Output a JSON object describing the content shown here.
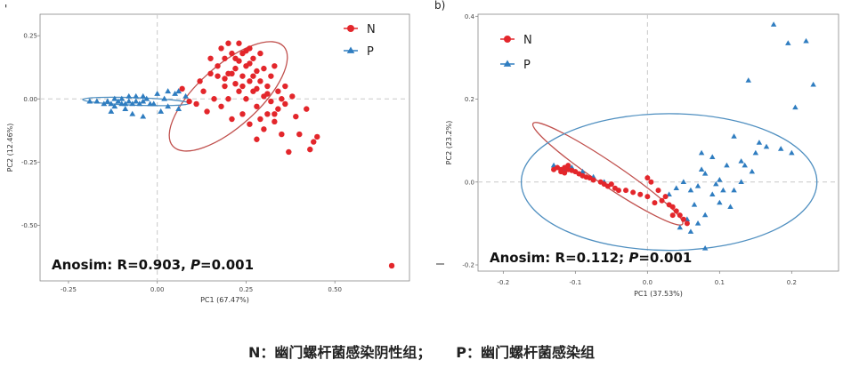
{
  "colors": {
    "N": "#e3262b",
    "P": "#2f7dc0",
    "ellipse_N": "#c0504d",
    "ellipse_P": "#4f8fc0",
    "ref_line": "#c8c8c8",
    "frame": "#888888"
  },
  "caption": {
    "n_text": "N：幽门螺杆菌感染阴性组；",
    "gap": "     ",
    "p_text": "P：幽门螺杆菌感染组"
  },
  "chart_data": [
    {
      "type": "scatter",
      "panel_letter": "'",
      "title": "",
      "xlabel": "PC1  (67.47%)",
      "ylabel": "PC2  (12.46%)",
      "xlim": [
        -0.33,
        0.71
      ],
      "ylim": [
        -0.72,
        0.335
      ],
      "xticks": [
        -0.25,
        0,
        0.25,
        0.5
      ],
      "xtick_labels": [
        "-0.25",
        "0.00",
        "0.25",
        "0.50"
      ],
      "yticks": [
        0.25,
        0,
        -0.25,
        -0.5
      ],
      "ytick_labels": [
        "0.25",
        "0.00",
        "-0.25",
        "-0.50"
      ],
      "annotation": {
        "prefix": "Anosim: R=0.903, ",
        "p_letter": "P",
        "suffix": "=0.001"
      },
      "legend": [
        {
          "name": "N",
          "shape": "circle"
        },
        {
          "name": "P",
          "shape": "triangle"
        }
      ],
      "ellipses": [
        {
          "group": "N",
          "cx": 0.2,
          "cy": 0.01,
          "rx": 0.21,
          "ry": 0.12,
          "angle_deg": 42
        },
        {
          "group": "P",
          "cx": -0.06,
          "cy": -0.01,
          "rx": 0.15,
          "ry": 0.015,
          "angle_deg": -2
        }
      ],
      "series": [
        {
          "name": "N",
          "shape": "circle",
          "points": [
            [
              0.07,
              0.04
            ],
            [
              0.09,
              -0.01
            ],
            [
              0.11,
              -0.02
            ],
            [
              0.12,
              0.07
            ],
            [
              0.13,
              0.03
            ],
            [
              0.14,
              -0.05
            ],
            [
              0.15,
              0.1
            ],
            [
              0.15,
              0.16
            ],
            [
              0.16,
              0.0
            ],
            [
              0.17,
              0.09
            ],
            [
              0.17,
              0.13
            ],
            [
              0.18,
              0.2
            ],
            [
              0.18,
              -0.03
            ],
            [
              0.19,
              0.05
            ],
            [
              0.19,
              0.16
            ],
            [
              0.2,
              0.22
            ],
            [
              0.2,
              0.1
            ],
            [
              0.2,
              0.0
            ],
            [
              0.21,
              0.18
            ],
            [
              0.21,
              -0.08
            ],
            [
              0.22,
              0.12
            ],
            [
              0.22,
              0.06
            ],
            [
              0.23,
              0.22
            ],
            [
              0.23,
              0.15
            ],
            [
              0.23,
              0.03
            ],
            [
              0.24,
              -0.06
            ],
            [
              0.24,
              0.18
            ],
            [
              0.24,
              0.09
            ],
            [
              0.25,
              0.13
            ],
            [
              0.25,
              0.0
            ],
            [
              0.26,
              0.2
            ],
            [
              0.26,
              0.07
            ],
            [
              0.26,
              -0.1
            ],
            [
              0.27,
              0.16
            ],
            [
              0.27,
              0.03
            ],
            [
              0.28,
              0.11
            ],
            [
              0.28,
              -0.03
            ],
            [
              0.28,
              -0.16
            ],
            [
              0.29,
              0.07
            ],
            [
              0.29,
              0.18
            ],
            [
              0.3,
              0.01
            ],
            [
              0.3,
              0.12
            ],
            [
              0.3,
              -0.12
            ],
            [
              0.31,
              0.05
            ],
            [
              0.31,
              -0.06
            ],
            [
              0.32,
              0.09
            ],
            [
              0.32,
              -0.01
            ],
            [
              0.33,
              0.13
            ],
            [
              0.33,
              -0.09
            ],
            [
              0.34,
              0.03
            ],
            [
              0.34,
              -0.04
            ],
            [
              0.35,
              -0.14
            ],
            [
              0.36,
              0.05
            ],
            [
              0.36,
              -0.02
            ],
            [
              0.37,
              -0.21
            ],
            [
              0.38,
              0.01
            ],
            [
              0.39,
              -0.07
            ],
            [
              0.4,
              -0.14
            ],
            [
              0.42,
              -0.04
            ],
            [
              0.43,
              -0.2
            ],
            [
              0.44,
              -0.17
            ],
            [
              0.45,
              -0.15
            ],
            [
              0.21,
              0.1
            ],
            [
              0.22,
              0.16
            ],
            [
              0.25,
              0.19
            ],
            [
              0.27,
              0.09
            ],
            [
              0.29,
              -0.08
            ],
            [
              0.31,
              0.02
            ],
            [
              0.24,
              0.05
            ],
            [
              0.26,
              0.14
            ],
            [
              0.19,
              0.08
            ],
            [
              0.33,
              -0.06
            ],
            [
              0.35,
              0.0
            ],
            [
              0.28,
              0.04
            ],
            [
              0.66,
              -0.66
            ]
          ]
        },
        {
          "name": "P",
          "shape": "triangle",
          "points": [
            [
              -0.19,
              -0.01
            ],
            [
              -0.17,
              -0.01
            ],
            [
              -0.15,
              -0.02
            ],
            [
              -0.14,
              -0.01
            ],
            [
              -0.13,
              -0.02
            ],
            [
              -0.12,
              0.0
            ],
            [
              -0.12,
              -0.03
            ],
            [
              -0.11,
              -0.01
            ],
            [
              -0.1,
              -0.02
            ],
            [
              -0.1,
              0.0
            ],
            [
              -0.09,
              -0.02
            ],
            [
              -0.09,
              -0.04
            ],
            [
              -0.08,
              -0.01
            ],
            [
              -0.08,
              0.01
            ],
            [
              -0.07,
              -0.02
            ],
            [
              -0.06,
              -0.01
            ],
            [
              -0.06,
              0.01
            ],
            [
              -0.05,
              -0.02
            ],
            [
              -0.04,
              0.01
            ],
            [
              -0.04,
              -0.01
            ],
            [
              -0.03,
              0.0
            ],
            [
              -0.02,
              -0.02
            ],
            [
              -0.07,
              -0.06
            ],
            [
              -0.13,
              -0.05
            ],
            [
              -0.04,
              -0.07
            ],
            [
              0.0,
              0.02
            ],
            [
              0.02,
              0.0
            ],
            [
              0.03,
              0.03
            ],
            [
              0.05,
              0.02
            ],
            [
              0.06,
              -0.04
            ],
            [
              0.01,
              -0.05
            ],
            [
              0.03,
              -0.03
            ],
            [
              0.08,
              0.01
            ],
            [
              0.06,
              0.03
            ],
            [
              -0.01,
              -0.02
            ]
          ]
        }
      ]
    },
    {
      "type": "scatter",
      "panel_letter": "b)",
      "title": "",
      "xlabel": "PC1  (37.53%)",
      "ylabel": "PC2  (23.2%)",
      "xlim": [
        -0.235,
        0.265
      ],
      "ylim": [
        -0.215,
        0.405
      ],
      "xticks": [
        -0.2,
        -0.1,
        0.0,
        0.1,
        0.2
      ],
      "xtick_labels": [
        "-0.2",
        "-0.1",
        "0.0",
        "0.1",
        "0.2"
      ],
      "yticks": [
        0.4,
        0.2,
        0.0,
        -0.2
      ],
      "ytick_labels": [
        "0.4",
        "0.2",
        "0.0",
        "-0.2"
      ],
      "annotation": {
        "prefix": "Anosim: R=0.112; ",
        "p_letter": "P",
        "suffix": "=0.001"
      },
      "legend": [
        {
          "name": "N",
          "shape": "circle"
        },
        {
          "name": "P",
          "shape": "triangle"
        }
      ],
      "ellipses": [
        {
          "group": "N",
          "cx": -0.055,
          "cy": 0.02,
          "rx": 0.125,
          "ry": 0.028,
          "angle_deg": -34
        },
        {
          "group": "P",
          "cx": 0.03,
          "cy": 0.0,
          "rx": 0.205,
          "ry": 0.165,
          "angle_deg": 0
        }
      ],
      "series": [
        {
          "name": "N",
          "shape": "circle",
          "points": [
            [
              -0.13,
              0.03
            ],
            [
              -0.125,
              0.035
            ],
            [
              -0.12,
              0.03
            ],
            [
              -0.115,
              0.035
            ],
            [
              -0.11,
              0.03
            ],
            [
              -0.105,
              0.028
            ],
            [
              -0.1,
              0.025
            ],
            [
              -0.095,
              0.02
            ],
            [
              -0.09,
              0.015
            ],
            [
              -0.085,
              0.012
            ],
            [
              -0.08,
              0.01
            ],
            [
              -0.075,
              0.005
            ],
            [
              -0.065,
              0.0
            ],
            [
              -0.06,
              -0.005
            ],
            [
              -0.055,
              -0.01
            ],
            [
              -0.05,
              -0.005
            ],
            [
              -0.045,
              -0.015
            ],
            [
              -0.03,
              -0.02
            ],
            [
              -0.02,
              -0.025
            ],
            [
              -0.01,
              -0.03
            ],
            [
              0.0,
              -0.035
            ],
            [
              0.005,
              0.0
            ],
            [
              0.01,
              -0.05
            ],
            [
              0.02,
              -0.045
            ],
            [
              0.03,
              -0.055
            ],
            [
              0.035,
              -0.06
            ],
            [
              0.04,
              -0.07
            ],
            [
              0.045,
              -0.08
            ],
            [
              0.05,
              -0.09
            ],
            [
              0.055,
              -0.1
            ],
            [
              -0.12,
              0.025
            ],
            [
              -0.11,
              0.04
            ],
            [
              0.015,
              -0.02
            ],
            [
              -0.04,
              -0.02
            ],
            [
              0.025,
              -0.035
            ],
            [
              0.0,
              0.01
            ],
            [
              0.035,
              -0.08
            ],
            [
              -0.115,
              0.022
            ]
          ]
        },
        {
          "name": "P",
          "shape": "triangle",
          "points": [
            [
              0.175,
              0.38
            ],
            [
              0.195,
              0.335
            ],
            [
              0.22,
              0.34
            ],
            [
              0.23,
              0.235
            ],
            [
              0.14,
              0.245
            ],
            [
              0.205,
              0.18
            ],
            [
              0.155,
              0.095
            ],
            [
              0.12,
              0.11
            ],
            [
              0.185,
              0.08
            ],
            [
              0.2,
              0.07
            ],
            [
              0.075,
              0.07
            ],
            [
              0.09,
              0.06
            ],
            [
              0.13,
              0.05
            ],
            [
              0.145,
              0.025
            ],
            [
              0.11,
              0.04
            ],
            [
              0.08,
              0.02
            ],
            [
              0.1,
              0.005
            ],
            [
              0.13,
              0.0
            ],
            [
              0.07,
              -0.01
            ],
            [
              0.06,
              -0.02
            ],
            [
              0.05,
              0.0
            ],
            [
              0.04,
              -0.015
            ],
            [
              0.03,
              -0.03
            ],
            [
              0.09,
              -0.03
            ],
            [
              0.1,
              -0.05
            ],
            [
              0.115,
              -0.06
            ],
            [
              0.08,
              -0.08
            ],
            [
              0.07,
              -0.1
            ],
            [
              0.06,
              -0.12
            ],
            [
              0.08,
              -0.16
            ],
            [
              0.055,
              -0.09
            ],
            [
              0.045,
              -0.11
            ],
            [
              0.105,
              -0.02
            ],
            [
              0.12,
              -0.02
            ],
            [
              0.135,
              0.04
            ],
            [
              0.15,
              0.07
            ],
            [
              0.165,
              0.085
            ],
            [
              0.095,
              -0.005
            ],
            [
              0.065,
              -0.055
            ],
            [
              0.075,
              0.03
            ],
            [
              -0.13,
              0.04
            ],
            [
              -0.125,
              0.035
            ],
            [
              -0.115,
              0.03
            ],
            [
              -0.105,
              0.035
            ],
            [
              -0.09,
              0.025
            ],
            [
              -0.075,
              0.012
            ],
            [
              -0.06,
              0.0
            ]
          ]
        }
      ]
    }
  ]
}
